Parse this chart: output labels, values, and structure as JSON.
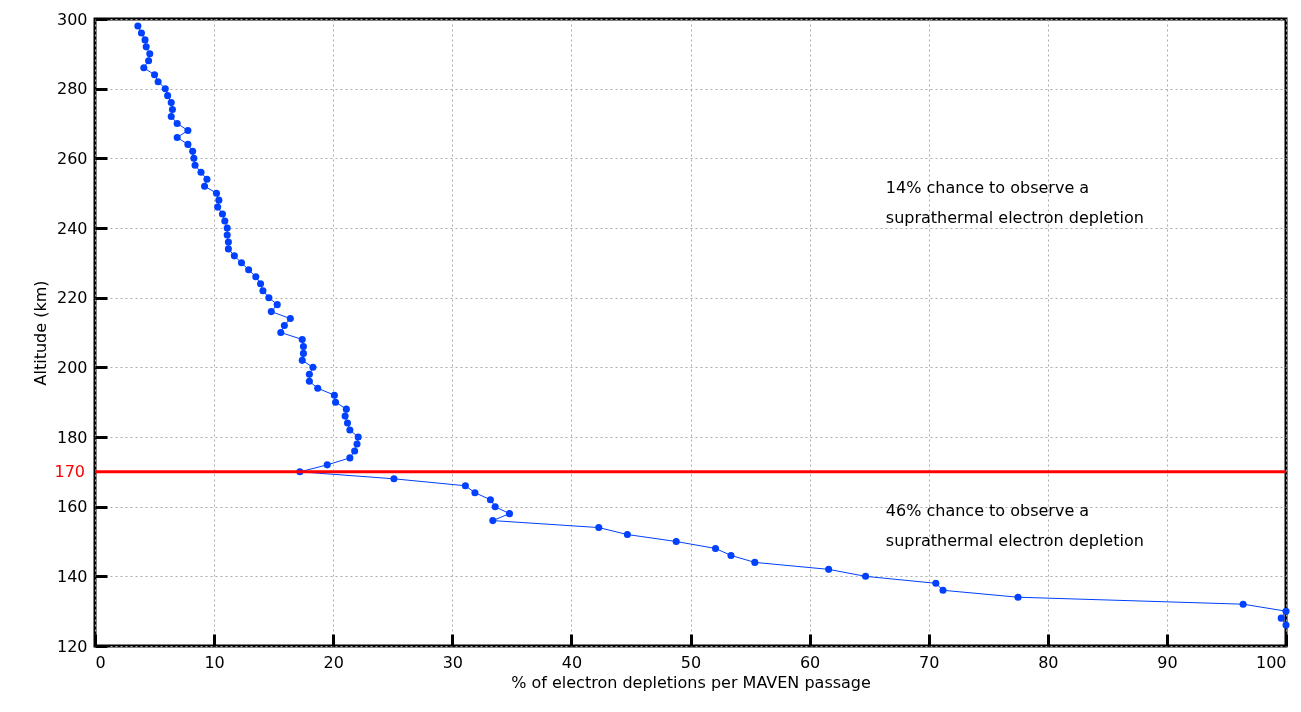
{
  "chart_data": {
    "type": "line",
    "xlabel": "% of electron depletions per MAVEN passage",
    "ylabel": "Altitude (km)",
    "xlim": [
      0,
      100
    ],
    "ylim": [
      120,
      300
    ],
    "xticks": [
      0,
      10,
      20,
      30,
      40,
      50,
      60,
      70,
      80,
      90,
      100
    ],
    "yticks": [
      120,
      140,
      160,
      180,
      200,
      220,
      240,
      260,
      280,
      300
    ],
    "grid": true,
    "marker": "circle",
    "series": [
      {
        "color": "#0040ff",
        "x": [
          3.6,
          3.9,
          4.2,
          4.3,
          4.6,
          4.5,
          4.1,
          5.0,
          5.3,
          5.9,
          6.1,
          6.4,
          6.5,
          6.4,
          6.9,
          7.8,
          6.9,
          7.8,
          8.2,
          8.3,
          8.4,
          8.9,
          9.4,
          9.2,
          10.2,
          10.4,
          10.3,
          10.7,
          10.9,
          11.1,
          11.1,
          11.2,
          11.2,
          11.7,
          12.3,
          12.9,
          13.5,
          13.9,
          14.1,
          14.6,
          15.3,
          14.8,
          16.4,
          15.9,
          15.6,
          17.4,
          17.5,
          17.5,
          17.4,
          18.3,
          18.0,
          18.0,
          18.7,
          20.1,
          20.2,
          21.1,
          21.0,
          21.2,
          21.4,
          22.1,
          22.0,
          21.8,
          21.4,
          19.5,
          17.2,
          25.1,
          31.1,
          31.9,
          33.2,
          33.6,
          34.8,
          33.4,
          42.3,
          44.7,
          48.8,
          52.1,
          53.4,
          55.4,
          61.6,
          64.7,
          70.6,
          71.2,
          77.5,
          96.4,
          100,
          99.6,
          100
        ],
        "values": [
          298,
          296,
          294,
          292,
          290,
          288,
          286,
          284,
          282,
          280,
          278,
          276,
          274,
          272,
          270,
          268,
          266,
          264,
          262,
          260,
          258,
          256,
          254,
          252,
          250,
          248,
          246,
          244,
          242,
          240,
          238,
          236,
          234,
          232,
          230,
          228,
          226,
          224,
          222,
          220,
          218,
          216,
          214,
          212,
          210,
          208,
          206,
          204,
          202,
          200,
          198,
          196,
          194,
          192,
          190,
          188,
          186,
          184,
          182,
          180,
          178,
          176,
          174,
          172,
          170,
          168,
          166,
          164,
          162,
          160,
          158,
          156,
          154,
          152,
          150,
          148,
          146,
          144,
          142,
          140,
          138,
          136,
          134,
          132,
          130,
          128,
          126
        ]
      }
    ],
    "ref_lines": [
      {
        "axis": "y",
        "value": 170,
        "label": "170",
        "color": "#ff0000"
      }
    ],
    "annotations": [
      "14% chance to observe a\nsuprathermal electron depletion",
      "46% chance to observe a\nsuprathermal electron depletion"
    ]
  }
}
